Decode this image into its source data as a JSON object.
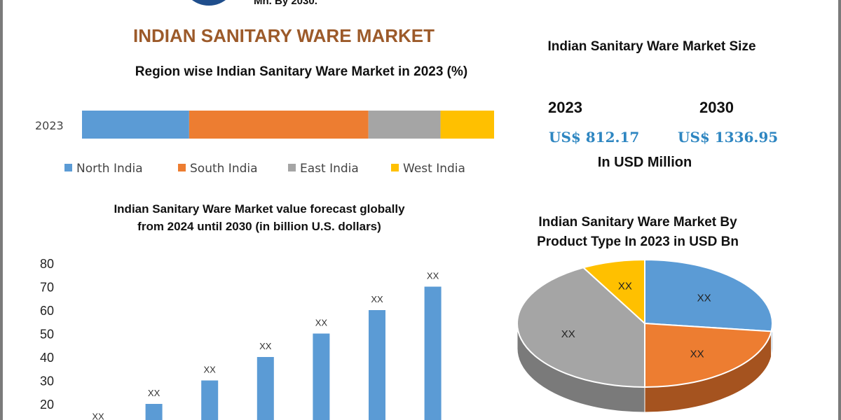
{
  "header": {
    "top_cut_text": "Mn. By 2030.",
    "title": "INDIAN SANITARY WARE MARKET"
  },
  "market_size": {
    "title": "Indian Sanitary Ware Market Size",
    "year1": "2023",
    "value1": "US$ 812.17",
    "year2": "2030",
    "value2": "US$ 1336.95",
    "unit": "In USD Million"
  },
  "colors": {
    "north": "#5b9bd5",
    "south": "#ed7d31",
    "east": "#a5a5a5",
    "west": "#ffc000",
    "title_brown": "#9c5a2a",
    "value_blue": "#2e86c1"
  },
  "chart_data": [
    {
      "type": "bar",
      "orientation": "horizontal-stacked",
      "title": "Region wise Indian Sanitary Ware Market in 2023 (%)",
      "categories": [
        "2023"
      ],
      "series": [
        {
          "name": "North India",
          "values": [
            26
          ]
        },
        {
          "name": "South India",
          "values": [
            43.5
          ]
        },
        {
          "name": "East India",
          "values": [
            17.5
          ]
        },
        {
          "name": "West India",
          "values": [
            13
          ]
        }
      ],
      "legend": "bottom"
    },
    {
      "type": "bar",
      "title_lines": [
        "Indian Sanitary Ware Market  value forecast globally",
        "from 2024 until 2030 (in billion U.S. dollars)"
      ],
      "values": [
        10,
        20,
        30,
        40,
        50,
        60,
        70
      ],
      "data_labels": [
        "XX",
        "XX",
        "XX",
        "XX",
        "XX",
        "XX",
        "XX"
      ],
      "y_ticks": [
        "20",
        "30",
        "40",
        "50",
        "60",
        "70",
        "80"
      ],
      "ylim": [
        10,
        80
      ]
    },
    {
      "type": "pie",
      "title_lines": [
        "Indian Sanitary Ware Market By",
        "Product Type  In 2023 in USD Bn"
      ],
      "slices": [
        {
          "label": "XX",
          "value": 27
        },
        {
          "label": "XX",
          "value": 23
        },
        {
          "label": "XX",
          "value": 42
        },
        {
          "label": "XX",
          "value": 8
        }
      ]
    }
  ]
}
